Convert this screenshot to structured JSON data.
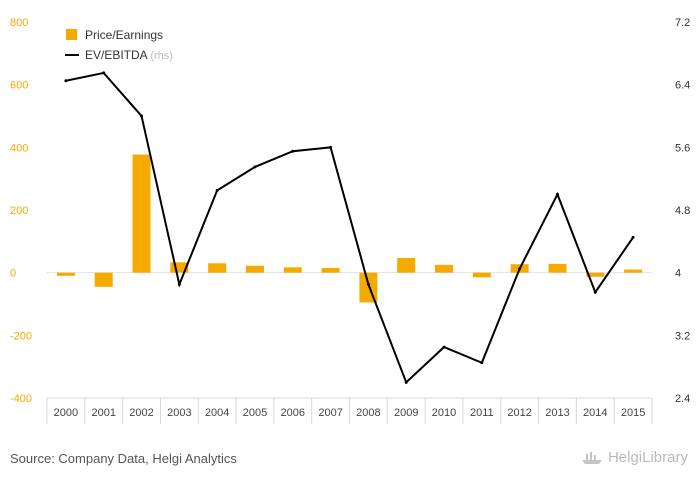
{
  "chart_data": {
    "type": "bar",
    "categories": [
      "2000",
      "2001",
      "2002",
      "2003",
      "2004",
      "2005",
      "2006",
      "2007",
      "2008",
      "2009",
      "2010",
      "2011",
      "2012",
      "2013",
      "2014",
      "2015"
    ],
    "series": [
      {
        "name": "Price/Earnings",
        "axis": "left",
        "type": "bar",
        "color": "#f5aa00",
        "values": [
          -10,
          -45,
          377,
          33,
          30,
          22,
          17,
          15,
          -95,
          47,
          25,
          -15,
          27,
          28,
          -13,
          10
        ]
      },
      {
        "name": "EV/EBITDA",
        "axis": "right",
        "type": "line",
        "color": "#000000",
        "values": [
          6.45,
          6.55,
          6.0,
          3.85,
          5.05,
          5.35,
          5.55,
          5.6,
          3.85,
          2.6,
          3.05,
          2.85,
          4.05,
          5.0,
          3.75,
          4.45
        ]
      }
    ],
    "y_left": {
      "min": -400,
      "max": 800,
      "ticks": [
        "800",
        "600",
        "400",
        "200",
        "0",
        "-200",
        "-400"
      ],
      "color": "#f5aa00"
    },
    "y_right": {
      "min": 2.4,
      "max": 7.2,
      "ticks": [
        "7.2",
        "6.4",
        "5.6",
        "4.8",
        "4",
        "3.2",
        "2.4"
      ]
    },
    "legend": {
      "placement": "top-left",
      "items": [
        {
          "label": "Price/Earnings",
          "suffix": ""
        },
        {
          "label": "EV/EBITDA",
          "suffix": "(rhs)"
        }
      ]
    },
    "grid": false
  },
  "footer": {
    "source": "Source: Company Data, Helgi Analytics",
    "brand": "HelgiLibrary",
    "brand_icon": "ship-icon"
  }
}
